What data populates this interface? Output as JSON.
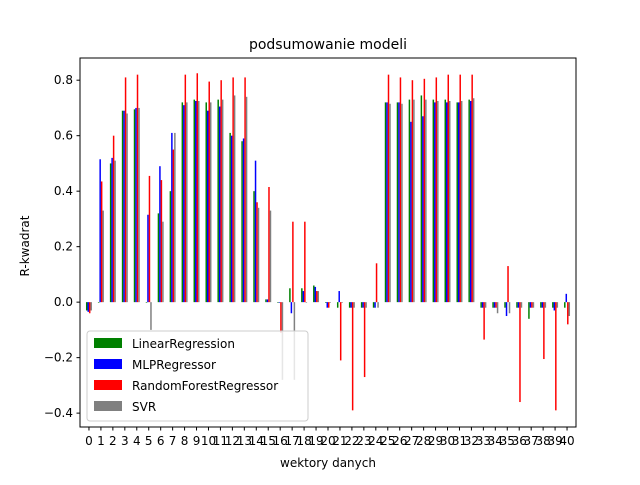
{
  "chart_data": {
    "type": "bar",
    "title": "podsumowanie modeli",
    "xlabel": "wektory danych",
    "ylabel": "R-kwadrat",
    "ylim": [
      -0.45,
      0.88
    ],
    "xlim": [
      -0.75,
      40.75
    ],
    "yticks": [
      -0.4,
      -0.2,
      0.0,
      0.2,
      0.4,
      0.6,
      0.8
    ],
    "ytick_labels": [
      "−0.4",
      "−0.2",
      "0.0",
      "0.2",
      "0.4",
      "0.6",
      "0.8"
    ],
    "categories": [
      "0",
      "1",
      "2",
      "3",
      "4",
      "5",
      "6",
      "7",
      "8",
      "9",
      "10",
      "11",
      "12",
      "13",
      "14",
      "15",
      "16",
      "17",
      "18",
      "19",
      "20",
      "21",
      "22",
      "23",
      "24",
      "25",
      "26",
      "27",
      "28",
      "29",
      "30",
      "31",
      "32",
      "33",
      "34",
      "35",
      "36",
      "37",
      "38",
      "39",
      "40"
    ],
    "grid": false,
    "legend_position": "lower-left",
    "series": [
      {
        "name": "LinearRegression",
        "color": "#008000",
        "values": [
          -0.03,
          0.0,
          0.5,
          0.69,
          0.695,
          0.0,
          0.32,
          0.4,
          0.72,
          0.73,
          0.72,
          0.73,
          0.61,
          0.58,
          0.4,
          0.01,
          0.0,
          0.05,
          0.05,
          0.06,
          0.0,
          -0.02,
          -0.02,
          -0.02,
          -0.02,
          0.72,
          0.72,
          0.73,
          0.745,
          0.73,
          0.73,
          0.72,
          0.73,
          -0.02,
          -0.02,
          -0.02,
          -0.02,
          -0.06,
          -0.02,
          -0.02,
          -0.02
        ]
      },
      {
        "name": "MLPRegressor",
        "color": "#0000ff",
        "values": [
          -0.035,
          0.515,
          0.52,
          0.69,
          0.7,
          0.315,
          0.49,
          0.61,
          0.71,
          0.725,
          0.69,
          0.705,
          0.6,
          0.59,
          0.51,
          0.01,
          0.0,
          -0.04,
          0.04,
          0.055,
          -0.02,
          0.04,
          -0.02,
          -0.02,
          -0.02,
          0.72,
          0.72,
          0.65,
          0.67,
          0.72,
          0.72,
          0.72,
          0.725,
          -0.02,
          -0.02,
          -0.05,
          -0.02,
          -0.02,
          -0.02,
          -0.03,
          0.03
        ]
      },
      {
        "name": "RandomForestRegressor",
        "color": "#ff0000",
        "values": [
          -0.04,
          0.435,
          0.6,
          0.81,
          0.82,
          0.455,
          0.44,
          0.55,
          0.82,
          0.825,
          0.795,
          0.8,
          0.81,
          0.81,
          0.36,
          0.415,
          -0.11,
          0.29,
          0.29,
          0.04,
          -0.02,
          -0.21,
          -0.39,
          -0.27,
          0.14,
          0.82,
          0.81,
          0.8,
          0.805,
          0.81,
          0.82,
          0.82,
          0.82,
          -0.135,
          -0.02,
          0.13,
          -0.36,
          -0.02,
          -0.205,
          -0.39,
          -0.08
        ]
      },
      {
        "name": "SVR",
        "color": "#808080",
        "values": [
          -0.03,
          0.33,
          0.51,
          0.68,
          0.7,
          -0.1,
          0.29,
          0.61,
          0.72,
          0.725,
          0.72,
          0.73,
          0.745,
          0.74,
          0.34,
          0.33,
          -0.28,
          -0.28,
          0.0,
          0.04,
          0.0,
          0.0,
          -0.02,
          -0.02,
          -0.02,
          0.715,
          0.715,
          0.73,
          0.73,
          0.725,
          0.725,
          0.725,
          0.735,
          -0.02,
          -0.04,
          -0.04,
          -0.02,
          -0.02,
          -0.02,
          -0.02,
          -0.05
        ]
      }
    ]
  }
}
